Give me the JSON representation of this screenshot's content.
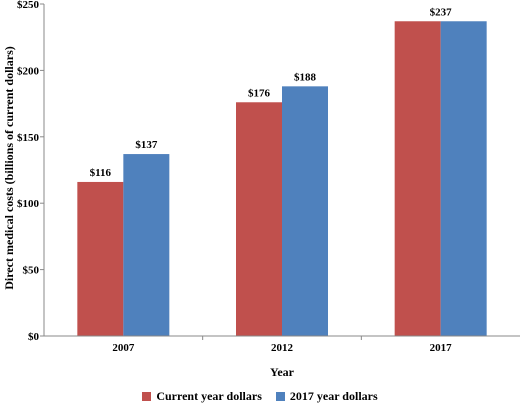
{
  "chart_data": {
    "type": "bar",
    "categories": [
      "2007",
      "2012",
      "2017"
    ],
    "series": [
      {
        "name": "Current year dollars",
        "values": [
          116,
          176,
          237
        ],
        "color": "#c0504d",
        "labels": [
          "$116",
          "$176",
          "$237"
        ]
      },
      {
        "name": "2017 year dollars",
        "values": [
          137,
          188,
          237
        ],
        "color": "#4f81bd",
        "labels": [
          "$137",
          "$188",
          ""
        ]
      }
    ],
    "xlabel": "Year",
    "ylabel": "Direct medical costs (billions of current dollars)",
    "ylim": [
      0,
      250
    ],
    "yticks": [
      0,
      50,
      100,
      150,
      200,
      250
    ],
    "ytick_labels": [
      "$0",
      "$50",
      "$100",
      "$150",
      "$200",
      "$250"
    ],
    "grid": false,
    "legend_position": "bottom-center"
  }
}
